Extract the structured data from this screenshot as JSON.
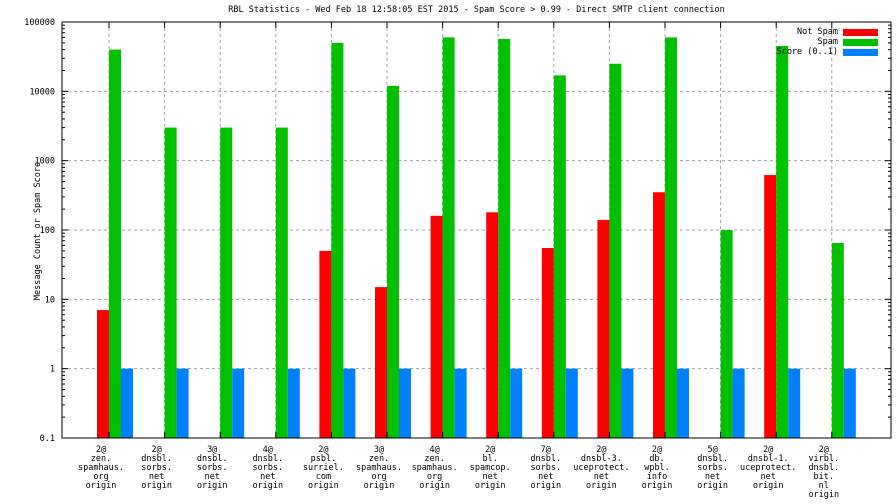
{
  "chart_data": {
    "type": "bar",
    "title": "RBL Statistics - Wed Feb 18 12:58:05 EST 2015 - Spam Score > 0.99 - Direct SMTP client connection",
    "ylabel": "Message Count or Spam Score",
    "yscale": "log",
    "ylim": [
      0.1,
      100000
    ],
    "yticks": [
      0.1,
      1,
      10,
      100,
      1000,
      10000,
      100000
    ],
    "ytick_labels": [
      "0.1",
      "1",
      "10",
      "100",
      "1000",
      "10000",
      "100000"
    ],
    "grid": true,
    "legend_position": "top-right",
    "categories": [
      [
        "2@",
        "zen.",
        "spamhaus.",
        "org",
        "origin"
      ],
      [
        "2@",
        "dnsbl.",
        "sorbs.",
        "net",
        "origin"
      ],
      [
        "3@",
        "dnsbl.",
        "sorbs.",
        "net",
        "origin"
      ],
      [
        "4@",
        "dnsbl.",
        "sorbs.",
        "net",
        "origin"
      ],
      [
        "2@",
        "psbl.",
        "surriel.",
        "com",
        "origin"
      ],
      [
        "3@",
        "zen.",
        "spamhaus.",
        "org",
        "origin"
      ],
      [
        "4@",
        "zen.",
        "spamhaus.",
        "org",
        "origin"
      ],
      [
        "2@",
        "bl.",
        "spamcop.",
        "net",
        "origin"
      ],
      [
        "7@",
        "dnsbl.",
        "sorbs.",
        "net",
        "origin"
      ],
      [
        "2@",
        "dnsbl-3.",
        "uceprotect.",
        "net",
        "origin"
      ],
      [
        "2@",
        "db.",
        "wpbl.",
        "info",
        "origin"
      ],
      [
        "5@",
        "dnsbl.",
        "sorbs.",
        "net",
        "origin"
      ],
      [
        "2@",
        "dnsbl-1.",
        "uceprotect.",
        "net",
        "origin"
      ],
      [
        "2@",
        "virbl.",
        "dnsbl.",
        "bit.",
        "nl",
        "origin"
      ]
    ],
    "series": [
      {
        "name": "Not Spam",
        "color": "#ff0000",
        "values": [
          7,
          null,
          null,
          null,
          50,
          15,
          160,
          180,
          55,
          140,
          350,
          null,
          620,
          null
        ]
      },
      {
        "name": "Spam",
        "color": "#00c000",
        "values": [
          40000,
          3000,
          3000,
          3000,
          50000,
          12000,
          60000,
          57000,
          17000,
          25000,
          60000,
          100,
          45000,
          65
        ]
      },
      {
        "name": "Score (0..1)",
        "color": "#0080ff",
        "values": [
          1,
          1,
          1,
          1,
          1,
          1,
          1,
          1,
          1,
          1,
          1,
          1,
          1,
          1
        ]
      }
    ]
  }
}
